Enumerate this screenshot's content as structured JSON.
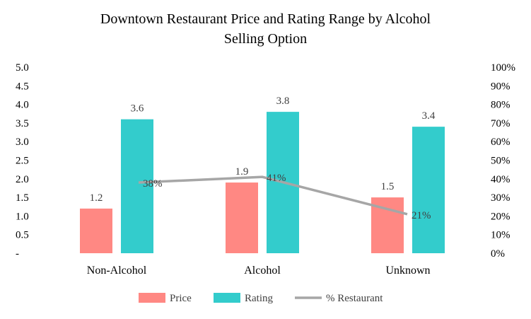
{
  "chart_data": {
    "type": "bar",
    "title_line1": "Downtown Restaurant Price and Rating Range by Alcohol",
    "title_line2": "Selling Option",
    "categories": [
      "Non-Alcohol",
      "Alcohol",
      "Unknown"
    ],
    "series": [
      {
        "name": "Price",
        "type": "bar",
        "axis": "left",
        "color": "#ff8883",
        "values": [
          1.2,
          1.9,
          1.5
        ],
        "labels": [
          "1.2",
          "1.9",
          "1.5"
        ]
      },
      {
        "name": "Rating",
        "type": "bar",
        "axis": "left",
        "color": "#33cccc",
        "values": [
          3.6,
          3.8,
          3.4
        ],
        "labels": [
          "3.6",
          "3.8",
          "3.4"
        ]
      },
      {
        "name": "% Restaurant",
        "type": "line",
        "axis": "right",
        "color": "#a6a6a6",
        "values": [
          0.38,
          0.41,
          0.21
        ],
        "labels": [
          "38%",
          "41%",
          "21%"
        ]
      }
    ],
    "y_left": {
      "range": [
        0,
        5
      ],
      "ticks": [
        "-",
        "0.5",
        "1.0",
        "1.5",
        "2.0",
        "2.5",
        "3.0",
        "3.5",
        "4.0",
        "4.5",
        "5.0"
      ]
    },
    "y_right": {
      "range": [
        0,
        1
      ],
      "ticks": [
        "0%",
        "10%",
        "20%",
        "30%",
        "40%",
        "50%",
        "60%",
        "70%",
        "80%",
        "90%",
        "100%"
      ]
    },
    "grid": false,
    "legend_position": "bottom"
  }
}
